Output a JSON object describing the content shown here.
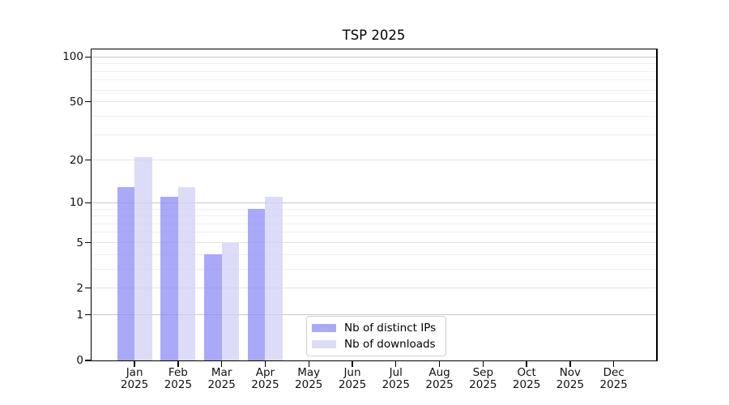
{
  "chart_data": {
    "type": "bar",
    "title": "TSP 2025",
    "categories": [
      "Jan",
      "Feb",
      "Mar",
      "Apr",
      "May",
      "Jun",
      "Jul",
      "Aug",
      "Sep",
      "Oct",
      "Nov",
      "Dec"
    ],
    "x_year_label": "2025",
    "series": [
      {
        "name": "Nb of distinct IPs",
        "color": "#a9a9f4",
        "bar_fill": "rgba(140,140,245,0.75)",
        "values": [
          13,
          11,
          4,
          9,
          0,
          0,
          0,
          0,
          0,
          0,
          0,
          0
        ]
      },
      {
        "name": "Nb of downloads",
        "color": "#dcdcf8",
        "bar_fill": "rgba(208,208,246,0.75)",
        "values": [
          21,
          13,
          5,
          11,
          0,
          0,
          0,
          0,
          0,
          0,
          0,
          0
        ]
      }
    ],
    "y_axis": {
      "scale": "log1p",
      "ticks": [
        0,
        1,
        2,
        5,
        10,
        20,
        50,
        100
      ],
      "emphasized_gridlines": [
        1,
        10,
        100
      ],
      "labeled_gridlines": [
        2,
        5,
        20,
        50
      ],
      "minor_gridlines": [
        3,
        4,
        6,
        7,
        8,
        9,
        30,
        40,
        60,
        70,
        80,
        90
      ],
      "range": [
        0,
        113
      ]
    },
    "xlabel": "",
    "ylabel": "",
    "grid": true,
    "legend": {
      "position": "bottom-center",
      "entries": [
        "Nb of distinct IPs",
        "Nb of downloads"
      ]
    },
    "colors": {
      "grid_emphasized": "#c8c8c8",
      "grid_labeled": "#e4e4e4",
      "grid_minor": "#efefef",
      "axis": "#000000",
      "background": "#ffffff",
      "text": "#111111"
    }
  }
}
